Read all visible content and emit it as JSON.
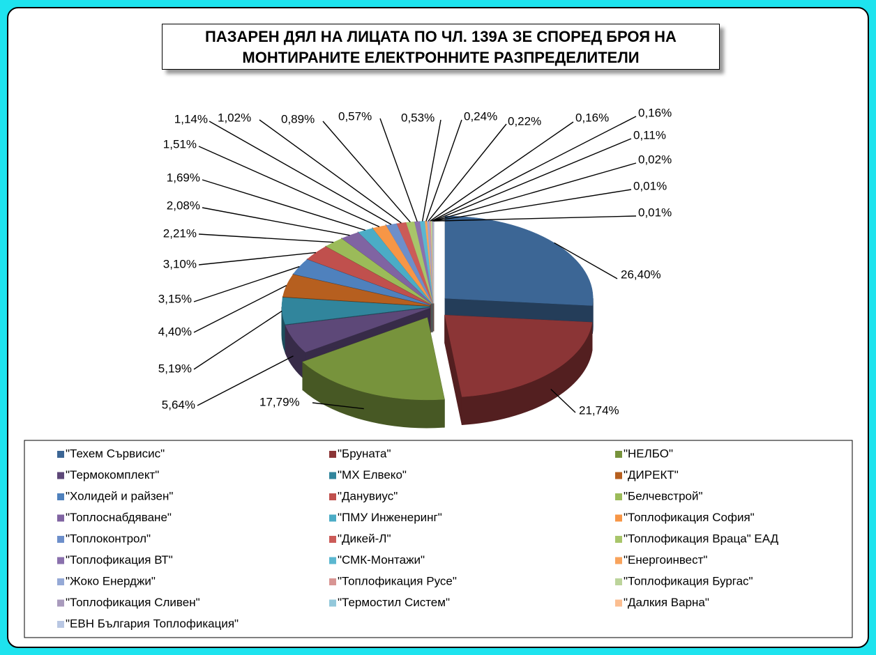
{
  "chart_data": {
    "type": "pie",
    "title": "ПАЗАРЕН ДЯЛ НА ЛИЦАТА ПО ЧЛ. 139А ЗЕ СПОРЕД БРОЯ НА МОНТИРАНИТЕ ЕЛЕКТРОННИТЕ РАЗПРЕДЕЛИТЕЛИ",
    "categories": [
      "\"Техем Сървисис\"",
      "\"Бруната\"",
      "\"НЕЛБО\"",
      "\"Термокомплект\"",
      "\"МХ Елвеко\"",
      "\"ДИРЕКТ\"",
      "\"Холидей и райзен\"",
      "\"Данувиус\"",
      "\"Белчевстрой\"",
      "\"Топлоснабдяване\"",
      "\"ПМУ Инженеринг\"",
      "\"Топлофикация София\"",
      "\"Топлоконтрол\"",
      "\"Дикей-Л\"",
      "\"Топлофикация Враца\" ЕАД",
      "\"Топлофикация ВТ\"",
      "\"СМК-Монтажи\"",
      "\"Енергоинвест\"",
      "\"Жоко Енерджи\"",
      "\"Топлофикация Русе\"",
      "\"Топлофикация Бургас\"",
      "\"Топлофикация Сливен\"",
      "\"Термостил Систем\"",
      "\"Далкия  Варна\"",
      "\"ЕВН България Топлофикация\""
    ],
    "values": [
      26.4,
      21.74,
      17.79,
      5.64,
      5.19,
      4.4,
      3.15,
      3.1,
      2.21,
      2.08,
      1.69,
      1.51,
      1.14,
      1.02,
      0.89,
      0.57,
      0.53,
      0.24,
      0.22,
      0.16,
      0.16,
      0.11,
      0.02,
      0.01,
      0.01
    ],
    "value_labels": [
      "26,40%",
      "21,74%",
      "17,79%",
      "5,64%",
      "5,19%",
      "4,40%",
      "3,15%",
      "3,10%",
      "2,21%",
      "2,08%",
      "1,69%",
      "1,51%",
      "1,14%",
      "1,02%",
      "0,89%",
      "0,57%",
      "0,53%",
      "0,24%",
      "0,22%",
      "0,16%",
      "0,16%",
      "0,11%",
      "0,02%",
      "0,01%",
      "0,01%"
    ],
    "colors": [
      "#3C6695",
      "#8B3536",
      "#77933C",
      "#5D4878",
      "#31859C",
      "#B65F1F",
      "#4F81BD",
      "#C0504D",
      "#9BBB59",
      "#8064A2",
      "#4BACC6",
      "#F79646",
      "#6D8FCA",
      "#CB5B58",
      "#A8C56A",
      "#8A71AD",
      "#5BB7D0",
      "#F8A35C",
      "#95A9D6",
      "#D89593",
      "#BCD49B",
      "#A99BBD",
      "#93C8DB",
      "#FBBE91",
      "#B9C7E3"
    ]
  }
}
